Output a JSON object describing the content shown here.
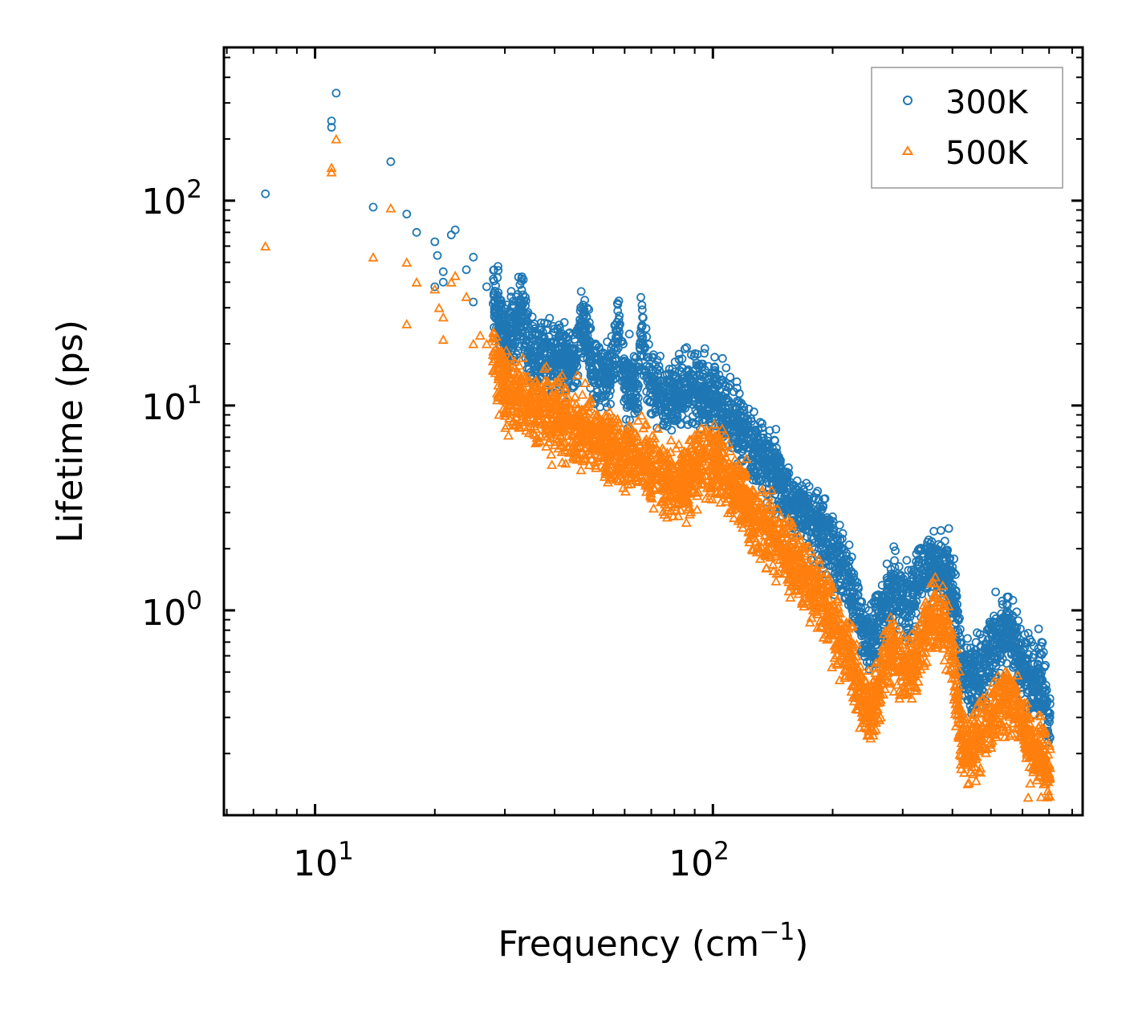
{
  "chart_data": {
    "type": "scatter",
    "title": "",
    "xlabel": "Frequency",
    "xlabel_unit_base": "cm",
    "xlabel_unit_exp": "−1",
    "ylabel": "Lifetime (ps)",
    "xscale": "log",
    "yscale": "log",
    "xlim": [
      5.9,
      850
    ],
    "ylim": [
      0.1,
      560
    ],
    "x_ticks": [
      {
        "value": 10,
        "base": "10",
        "exp": "1"
      },
      {
        "value": 100,
        "base": "10",
        "exp": "2"
      }
    ],
    "y_ticks": [
      {
        "value": 1,
        "base": "10",
        "exp": "0"
      },
      {
        "value": 10,
        "base": "10",
        "exp": "1"
      },
      {
        "value": 100,
        "base": "10",
        "exp": "2"
      }
    ],
    "legend_position": "top-right",
    "series": [
      {
        "name": "300K",
        "marker": "circle",
        "color": "#1f77b4",
        "anchors": [
          [
            7.5,
            108
          ],
          [
            11.0,
            245
          ],
          [
            11.0,
            228
          ],
          [
            11.3,
            335
          ],
          [
            14.0,
            93
          ],
          [
            15.5,
            155
          ],
          [
            17.0,
            86
          ],
          [
            18.0,
            70
          ],
          [
            20.0,
            63
          ],
          [
            20.3,
            54
          ],
          [
            21.0,
            45
          ],
          [
            21.0,
            40
          ],
          [
            22.0,
            68
          ],
          [
            22.5,
            72
          ],
          [
            24.0,
            46
          ],
          [
            25.0,
            53
          ],
          [
            27.0,
            38
          ],
          [
            29.0,
            31
          ],
          [
            33.0,
            31
          ],
          [
            47.0,
            27
          ],
          [
            58.0,
            24
          ],
          [
            66.0,
            22
          ],
          [
            20,
            38
          ],
          [
            25,
            32
          ],
          [
            30,
            20
          ],
          [
            35,
            17
          ],
          [
            40,
            18
          ],
          [
            45,
            16
          ],
          [
            50,
            15
          ],
          [
            55,
            14
          ],
          [
            60,
            13
          ],
          [
            65,
            12.5
          ],
          [
            70,
            12
          ],
          [
            75,
            11
          ],
          [
            80,
            11
          ],
          [
            85,
            12
          ],
          [
            90,
            12.5
          ],
          [
            95,
            12
          ],
          [
            100,
            11
          ],
          [
            105,
            10
          ],
          [
            110,
            9
          ],
          [
            115,
            8
          ],
          [
            120,
            7.5
          ],
          [
            125,
            6.5
          ],
          [
            130,
            6
          ],
          [
            140,
            5
          ],
          [
            150,
            4
          ],
          [
            160,
            3.3
          ],
          [
            170,
            3
          ],
          [
            180,
            2.7
          ],
          [
            190,
            2.3
          ],
          [
            200,
            2.0
          ],
          [
            210,
            1.7
          ],
          [
            220,
            1.3
          ],
          [
            230,
            1.0
          ],
          [
            240,
            0.8
          ],
          [
            250,
            0.75
          ],
          [
            260,
            0.8
          ],
          [
            270,
            1.1
          ],
          [
            280,
            1.3
          ],
          [
            290,
            1.2
          ],
          [
            300,
            1.1
          ],
          [
            310,
            1.0
          ],
          [
            320,
            1.2
          ],
          [
            330,
            1.5
          ],
          [
            340,
            1.6
          ],
          [
            350,
            1.7
          ],
          [
            360,
            1.7
          ],
          [
            370,
            1.6
          ],
          [
            380,
            1.5
          ],
          [
            390,
            1.4
          ],
          [
            400,
            1.2
          ],
          [
            410,
            1.0
          ],
          [
            420,
            0.6
          ],
          [
            430,
            0.5
          ],
          [
            450,
            0.45
          ],
          [
            470,
            0.5
          ],
          [
            490,
            0.6
          ],
          [
            510,
            0.7
          ],
          [
            530,
            0.75
          ],
          [
            550,
            0.8
          ],
          [
            570,
            0.75
          ],
          [
            590,
            0.6
          ],
          [
            610,
            0.5
          ],
          [
            630,
            0.45
          ],
          [
            650,
            0.45
          ],
          [
            670,
            0.5
          ],
          [
            690,
            0.35
          ],
          [
            700,
            0.3
          ]
        ]
      },
      {
        "name": "500K",
        "marker": "triangle",
        "color": "#ff7f0e",
        "anchors": [
          [
            7.5,
            60
          ],
          [
            11.0,
            145
          ],
          [
            11.0,
            138
          ],
          [
            11.3,
            200
          ],
          [
            14.0,
            53
          ],
          [
            15.5,
            92
          ],
          [
            17.0,
            50
          ],
          [
            17.0,
            25
          ],
          [
            18.0,
            40
          ],
          [
            20.0,
            37
          ],
          [
            20.5,
            30
          ],
          [
            21.0,
            27
          ],
          [
            21.0,
            21
          ],
          [
            22.0,
            40
          ],
          [
            22.5,
            43
          ],
          [
            24.0,
            34
          ],
          [
            26.0,
            22
          ],
          [
            27.0,
            20
          ],
          [
            25,
            20
          ],
          [
            30,
            12
          ],
          [
            35,
            10
          ],
          [
            40,
            9
          ],
          [
            45,
            8
          ],
          [
            50,
            7
          ],
          [
            55,
            6.5
          ],
          [
            60,
            6
          ],
          [
            65,
            5.5
          ],
          [
            70,
            5
          ],
          [
            75,
            4.5
          ],
          [
            80,
            4.3
          ],
          [
            85,
            4.5
          ],
          [
            90,
            5
          ],
          [
            95,
            5.5
          ],
          [
            100,
            5.3
          ],
          [
            105,
            5
          ],
          [
            110,
            4.5
          ],
          [
            115,
            4
          ],
          [
            120,
            3.5
          ],
          [
            125,
            3
          ],
          [
            130,
            2.7
          ],
          [
            140,
            2.3
          ],
          [
            150,
            2
          ],
          [
            160,
            1.7
          ],
          [
            170,
            1.5
          ],
          [
            180,
            1.3
          ],
          [
            190,
            1.1
          ],
          [
            200,
            0.9
          ],
          [
            210,
            0.75
          ],
          [
            220,
            0.6
          ],
          [
            230,
            0.45
          ],
          [
            240,
            0.35
          ],
          [
            250,
            0.33
          ],
          [
            260,
            0.4
          ],
          [
            270,
            0.55
          ],
          [
            280,
            0.65
          ],
          [
            290,
            0.6
          ],
          [
            300,
            0.55
          ],
          [
            310,
            0.5
          ],
          [
            320,
            0.55
          ],
          [
            330,
            0.7
          ],
          [
            340,
            0.8
          ],
          [
            350,
            0.9
          ],
          [
            360,
            0.95
          ],
          [
            370,
            0.9
          ],
          [
            380,
            0.85
          ],
          [
            390,
            0.8
          ],
          [
            400,
            0.6
          ],
          [
            410,
            0.4
          ],
          [
            420,
            0.25
          ],
          [
            430,
            0.22
          ],
          [
            450,
            0.22
          ],
          [
            470,
            0.26
          ],
          [
            490,
            0.3
          ],
          [
            510,
            0.33
          ],
          [
            530,
            0.35
          ],
          [
            550,
            0.38
          ],
          [
            570,
            0.35
          ],
          [
            590,
            0.3
          ],
          [
            610,
            0.26
          ],
          [
            630,
            0.22
          ],
          [
            650,
            0.2
          ],
          [
            670,
            0.19
          ],
          [
            690,
            0.17
          ],
          [
            700,
            0.16
          ]
        ]
      }
    ]
  }
}
